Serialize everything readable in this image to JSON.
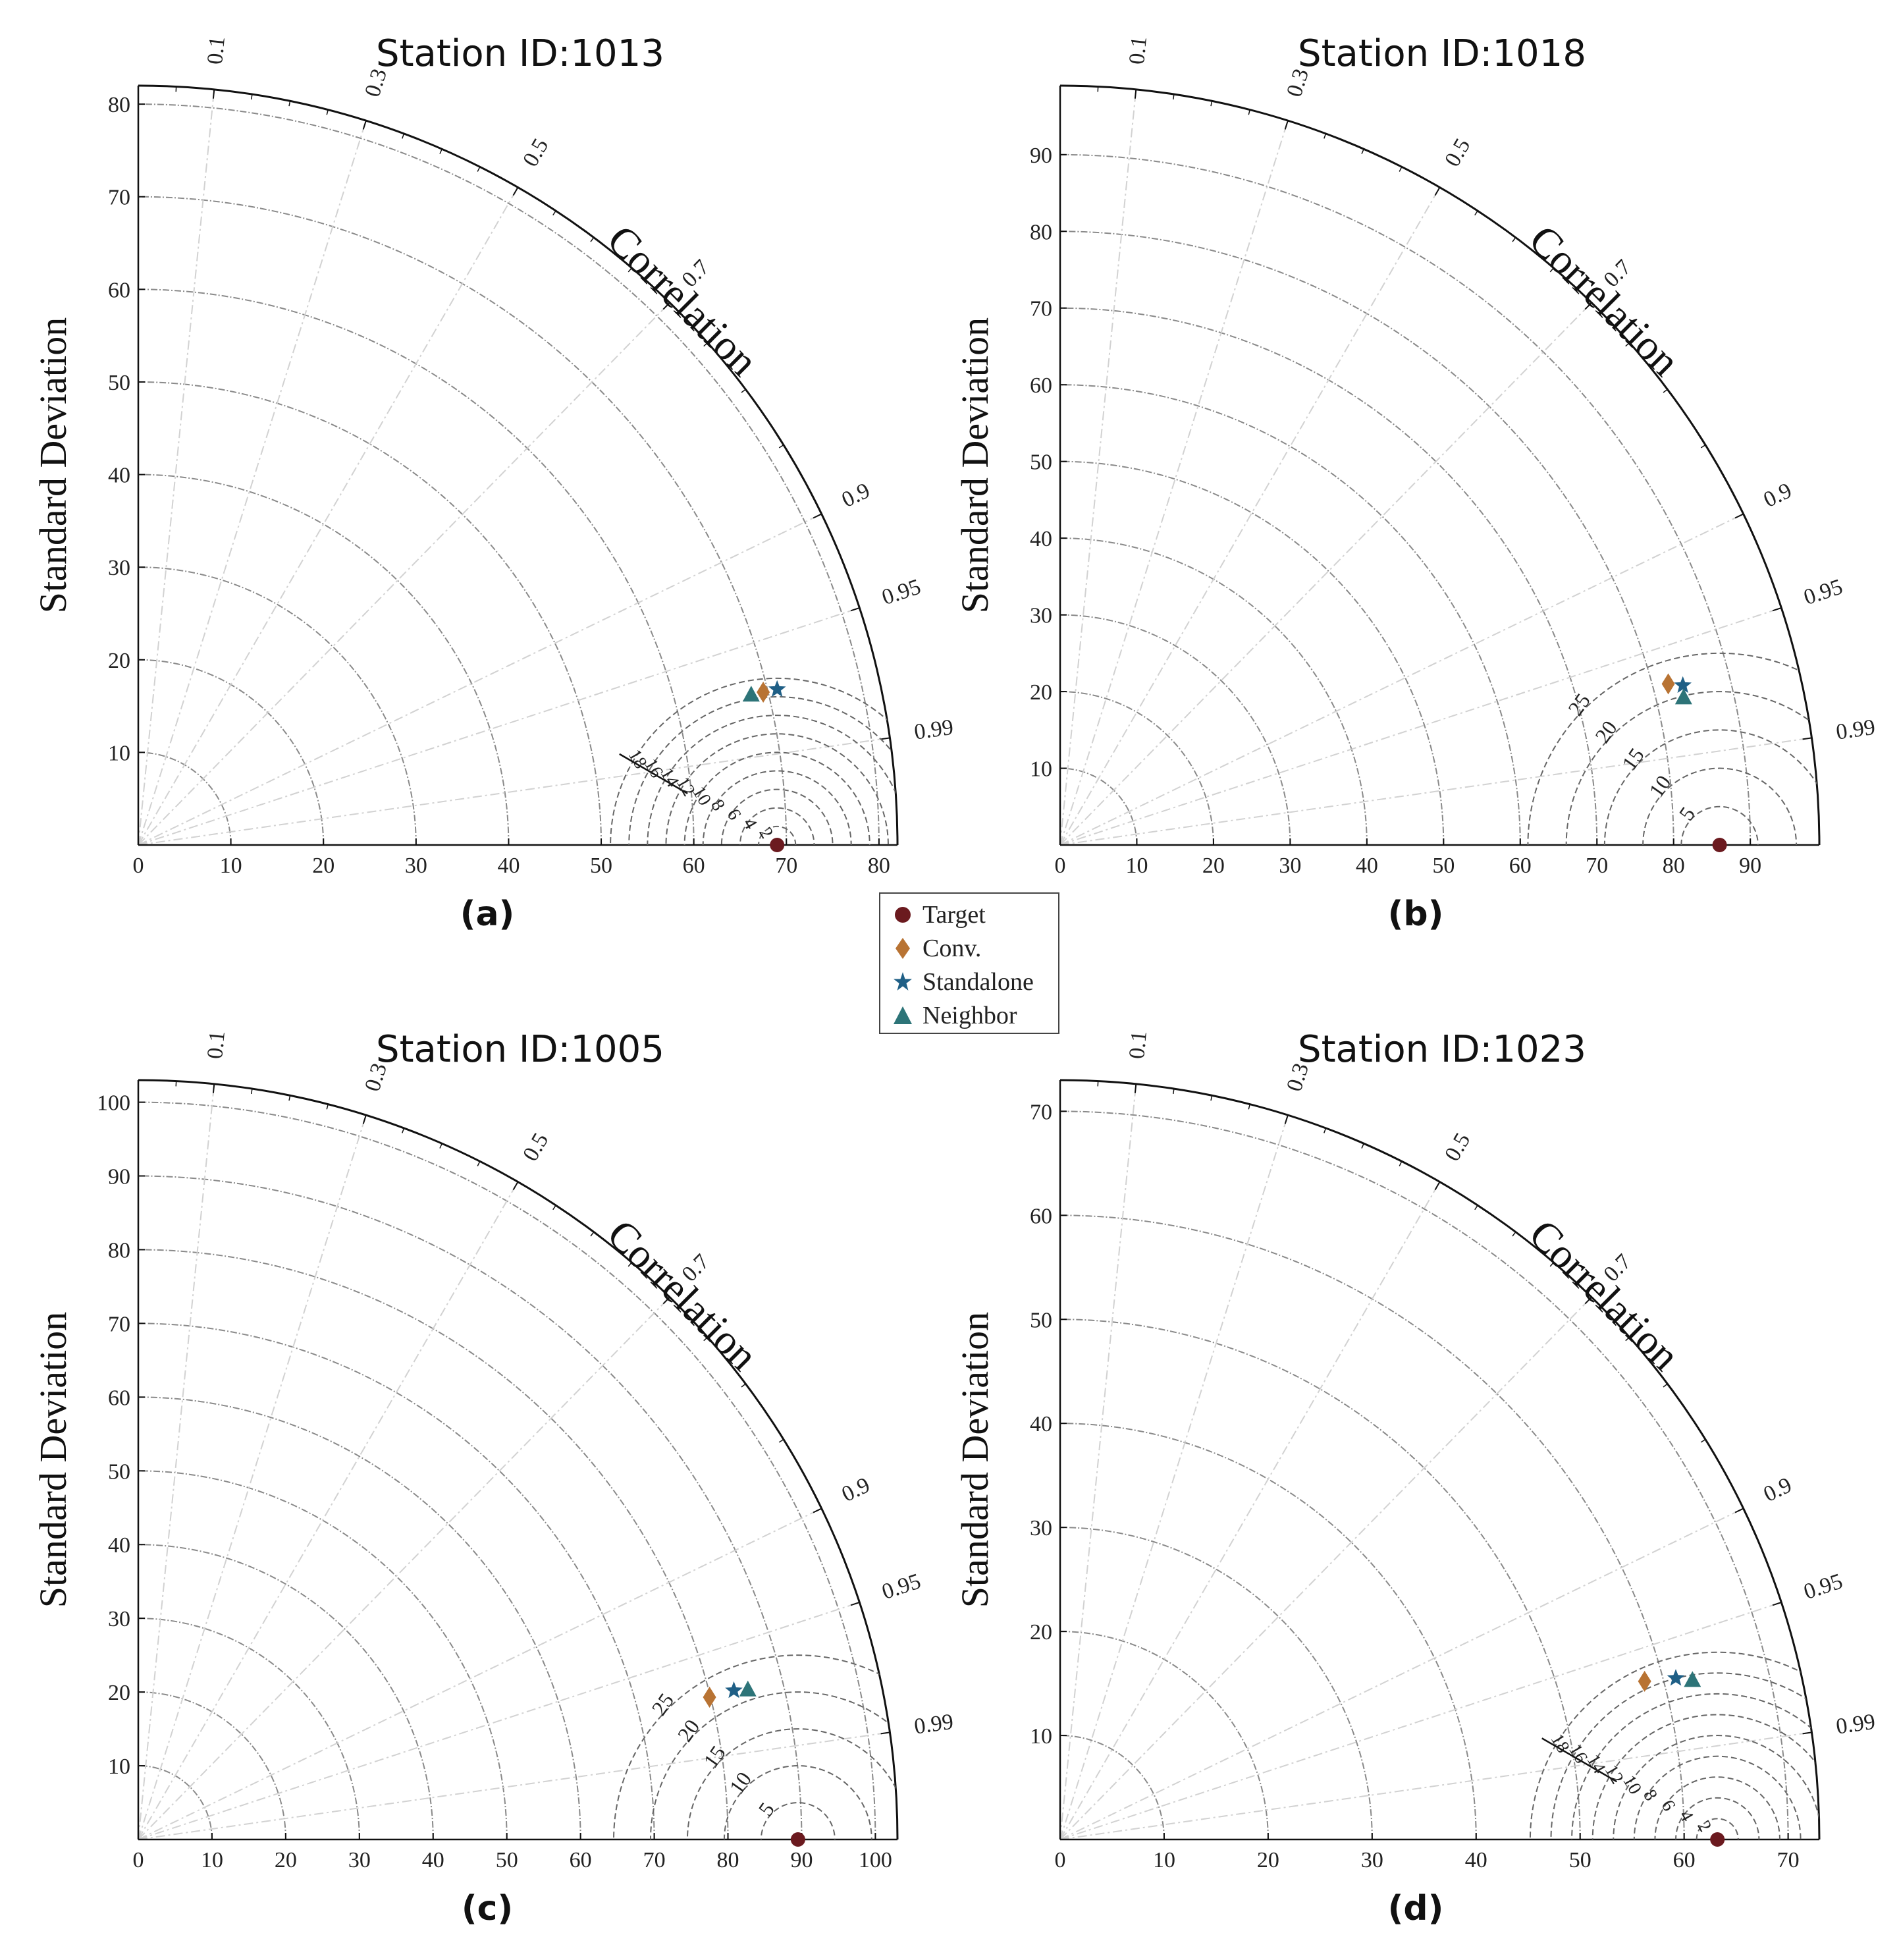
{
  "colors": {
    "target": "#6b1a1f",
    "conv": "#b87333",
    "standalone": "#1f5f86",
    "neighbor": "#2d7478"
  },
  "legend": [
    {
      "key": "target",
      "label": "Target",
      "marker": "circle"
    },
    {
      "key": "conv",
      "label": "Conv.",
      "marker": "diamond"
    },
    {
      "key": "standalone",
      "label": "Standalone",
      "marker": "star"
    },
    {
      "key": "neighbor",
      "label": "Neighbor",
      "marker": "triangle"
    }
  ],
  "chart_data": [
    {
      "type": "taylor",
      "panel_label": "(a)",
      "title": "Station ID:1013",
      "ylabel": "Standard Deviation",
      "corr_label": "Correlation",
      "max_std": 82,
      "std_ticks": [
        0,
        10,
        20,
        30,
        40,
        50,
        60,
        70,
        80
      ],
      "corr_ticks": [
        0.1,
        0.3,
        0.5,
        0.7,
        0.9,
        0.95,
        0.99
      ],
      "rmsd_ticks": [
        2,
        4,
        6,
        8,
        10,
        12,
        14,
        16,
        18
      ],
      "rmsd_label_ticks": [
        2,
        4,
        6,
        8,
        10,
        12,
        14,
        16,
        18
      ],
      "rmsd_style": "line",
      "points": [
        {
          "key": "target",
          "std": 69,
          "corr": 1.0
        },
        {
          "key": "conv",
          "x": 67.5,
          "y": 16.5
        },
        {
          "key": "standalone",
          "x": 69.0,
          "y": 16.8
        },
        {
          "key": "neighbor",
          "x": 66.2,
          "y": 16.2
        }
      ]
    },
    {
      "type": "taylor",
      "panel_label": "(b)",
      "title": "Station ID:1018",
      "ylabel": "Standard Deviation",
      "corr_label": "Correlation",
      "max_std": 99,
      "std_ticks": [
        0,
        10,
        20,
        30,
        40,
        50,
        60,
        70,
        80,
        90
      ],
      "corr_ticks": [
        0.1,
        0.3,
        0.5,
        0.7,
        0.9,
        0.95,
        0.99
      ],
      "rmsd_ticks": [
        5,
        10,
        15,
        20,
        25
      ],
      "rmsd_label_ticks": [
        5,
        10,
        15,
        20,
        25
      ],
      "rmsd_style": "radial",
      "points": [
        {
          "key": "target",
          "std": 86,
          "corr": 1.0
        },
        {
          "key": "conv",
          "x": 79.3,
          "y": 21.0
        },
        {
          "key": "standalone",
          "x": 81.2,
          "y": 20.8
        },
        {
          "key": "neighbor",
          "x": 81.3,
          "y": 19.2
        }
      ]
    },
    {
      "type": "taylor",
      "panel_label": "(c)",
      "title": "Station ID:1005",
      "ylabel": "Standard Deviation",
      "corr_label": "Correlation",
      "max_std": 103,
      "std_ticks": [
        0,
        10,
        20,
        30,
        40,
        50,
        60,
        70,
        80,
        90,
        100
      ],
      "corr_ticks": [
        0.1,
        0.3,
        0.5,
        0.7,
        0.9,
        0.95,
        0.99
      ],
      "rmsd_ticks": [
        5,
        10,
        15,
        20,
        25
      ],
      "rmsd_label_ticks": [
        5,
        10,
        15,
        20,
        25
      ],
      "rmsd_style": "radial",
      "points": [
        {
          "key": "target",
          "std": 89.5,
          "corr": 1.0
        },
        {
          "key": "conv",
          "x": 77.5,
          "y": 19.3
        },
        {
          "key": "standalone",
          "x": 80.8,
          "y": 20.2
        },
        {
          "key": "neighbor",
          "x": 82.7,
          "y": 20.3
        }
      ]
    },
    {
      "type": "taylor",
      "panel_label": "(d)",
      "title": "Station ID:1023",
      "ylabel": "Standard Deviation",
      "corr_label": "Correlation",
      "max_std": 73,
      "std_ticks": [
        0,
        10,
        20,
        30,
        40,
        50,
        60,
        70
      ],
      "corr_ticks": [
        0.1,
        0.3,
        0.5,
        0.7,
        0.9,
        0.95,
        0.99
      ],
      "rmsd_ticks": [
        2,
        4,
        6,
        8,
        10,
        12,
        14,
        16,
        18
      ],
      "rmsd_label_ticks": [
        2,
        4,
        6,
        8,
        10,
        12,
        14,
        16,
        18
      ],
      "rmsd_style": "line",
      "points": [
        {
          "key": "target",
          "std": 63.2,
          "corr": 1.0
        },
        {
          "key": "conv",
          "x": 56.2,
          "y": 15.2
        },
        {
          "key": "standalone",
          "x": 59.2,
          "y": 15.5
        },
        {
          "key": "neighbor",
          "x": 60.8,
          "y": 15.3
        }
      ]
    }
  ]
}
